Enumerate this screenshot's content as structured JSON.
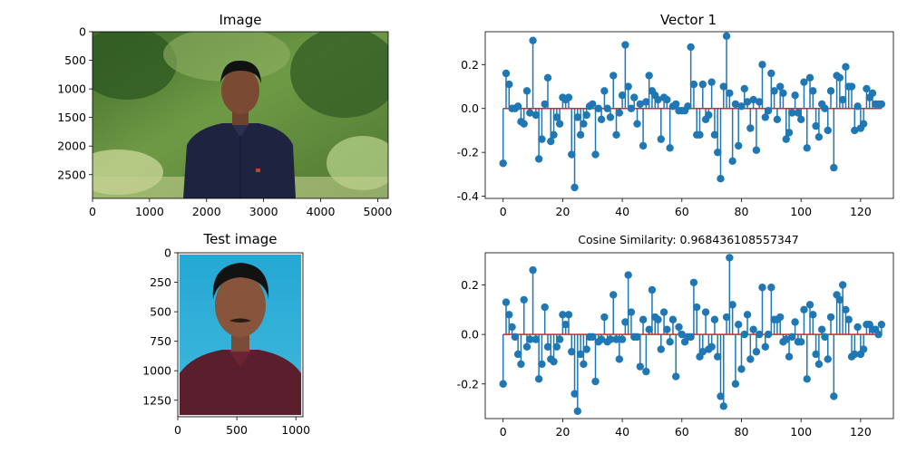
{
  "colors": {
    "stem": "#1f77b4",
    "baseline": "#d62728",
    "axis": "#000000",
    "background": "#ffffff"
  },
  "panels": {
    "image": {
      "title": "Image",
      "xticks": [
        "0",
        "1000",
        "2000",
        "3000",
        "4000",
        "5000"
      ],
      "yticks": [
        "0",
        "500",
        "1000",
        "1500",
        "2000",
        "2500"
      ],
      "content": "outdoor-portrait-photo"
    },
    "test_image": {
      "title": "Test image",
      "xticks": [
        "0",
        "500",
        "1000"
      ],
      "yticks": [
        "0",
        "250",
        "500",
        "750",
        "1000",
        "1250"
      ],
      "content": "passport-photo-blue-background"
    }
  },
  "chart_data": [
    {
      "type": "stem",
      "title": "Vector 1",
      "xlabel": "",
      "ylabel": "",
      "xlim": [
        -6,
        131
      ],
      "ylim": [
        -0.41,
        0.35
      ],
      "xticks": [
        0,
        20,
        40,
        60,
        80,
        100,
        120
      ],
      "yticks": [
        -0.4,
        -0.2,
        0.0,
        0.2
      ],
      "baseline": 0.0,
      "values": [
        -0.25,
        0.16,
        0.11,
        0.0,
        0.0,
        0.01,
        -0.06,
        -0.07,
        0.08,
        -0.02,
        0.31,
        -0.03,
        -0.23,
        -0.14,
        0.02,
        0.14,
        -0.15,
        -0.12,
        -0.04,
        -0.07,
        0.05,
        0.04,
        0.05,
        -0.21,
        -0.36,
        -0.04,
        -0.12,
        -0.07,
        -0.03,
        0.01,
        0.02,
        -0.21,
        0.0,
        -0.05,
        0.08,
        0.0,
        -0.04,
        0.15,
        -0.12,
        -0.02,
        0.06,
        0.29,
        0.1,
        0.0,
        0.05,
        -0.07,
        0.02,
        -0.17,
        0.03,
        0.15,
        0.08,
        0.06,
        0.04,
        -0.14,
        0.05,
        0.04,
        -0.18,
        0.01,
        0.02,
        -0.01,
        -0.01,
        -0.01,
        0.01,
        0.28,
        0.11,
        -0.12,
        -0.12,
        0.11,
        -0.05,
        -0.03,
        0.12,
        -0.12,
        -0.2,
        -0.32,
        0.1,
        0.33,
        0.07,
        -0.24,
        0.02,
        -0.17,
        0.01,
        0.09,
        0.03,
        -0.09,
        0.04,
        -0.19,
        0.03,
        0.2,
        -0.04,
        -0.01,
        0.16,
        0.08,
        -0.05,
        0.1,
        0.07,
        -0.14,
        -0.11,
        -0.02,
        0.06,
        -0.02,
        -0.05,
        0.12,
        -0.18,
        0.14,
        0.08,
        -0.08,
        -0.13,
        0.02,
        0.0,
        -0.1,
        0.08,
        -0.27,
        0.15,
        0.14,
        0.04,
        0.19,
        0.1,
        0.1,
        -0.1,
        0.01,
        -0.09,
        -0.07,
        0.09,
        0.05,
        0.07,
        0.02,
        0.02,
        0.02
      ]
    },
    {
      "type": "stem",
      "title": "Cosine Similarity: 0.968436108557347",
      "xlabel": "",
      "ylabel": "",
      "xlim": [
        -6,
        131
      ],
      "ylim": [
        -0.34,
        0.33
      ],
      "xticks": [
        0,
        20,
        40,
        60,
        80,
        100,
        120
      ],
      "yticks": [
        -0.2,
        0.0,
        0.2
      ],
      "baseline": 0.0,
      "values": [
        -0.2,
        0.13,
        0.08,
        0.03,
        -0.01,
        -0.08,
        -0.12,
        0.14,
        -0.05,
        -0.02,
        0.26,
        -0.02,
        -0.18,
        -0.12,
        0.11,
        -0.05,
        -0.1,
        -0.11,
        -0.05,
        -0.02,
        0.08,
        0.04,
        0.08,
        -0.07,
        -0.24,
        -0.31,
        -0.08,
        -0.12,
        -0.06,
        -0.01,
        -0.01,
        -0.19,
        -0.03,
        -0.02,
        0.07,
        -0.03,
        -0.02,
        0.16,
        -0.02,
        -0.1,
        -0.02,
        0.05,
        0.24,
        0.09,
        -0.01,
        -0.01,
        -0.13,
        0.06,
        -0.15,
        0.02,
        0.18,
        0.07,
        0.06,
        -0.06,
        0.09,
        0.02,
        -0.03,
        0.06,
        -0.17,
        0.03,
        0.0,
        -0.03,
        -0.01,
        -0.01,
        0.21,
        0.11,
        -0.09,
        -0.07,
        0.09,
        -0.06,
        -0.05,
        0.06,
        -0.09,
        -0.25,
        -0.29,
        0.07,
        0.31,
        0.12,
        -0.2,
        0.04,
        -0.14,
        0.0,
        0.08,
        -0.1,
        0.02,
        -0.07,
        0.0,
        0.19,
        -0.05,
        0.0,
        0.19,
        0.06,
        0.06,
        0.07,
        -0.03,
        -0.02,
        -0.09,
        -0.01,
        0.05,
        -0.03,
        -0.03,
        0.1,
        -0.18,
        0.12,
        0.08,
        -0.08,
        -0.12,
        0.02,
        -0.01,
        -0.1,
        0.07,
        -0.25,
        0.16,
        0.14,
        0.2,
        0.1,
        0.06,
        -0.09,
        -0.08,
        0.03,
        -0.08,
        -0.06,
        0.04,
        0.04,
        0.02,
        0.02,
        0.0,
        0.04
      ]
    }
  ]
}
